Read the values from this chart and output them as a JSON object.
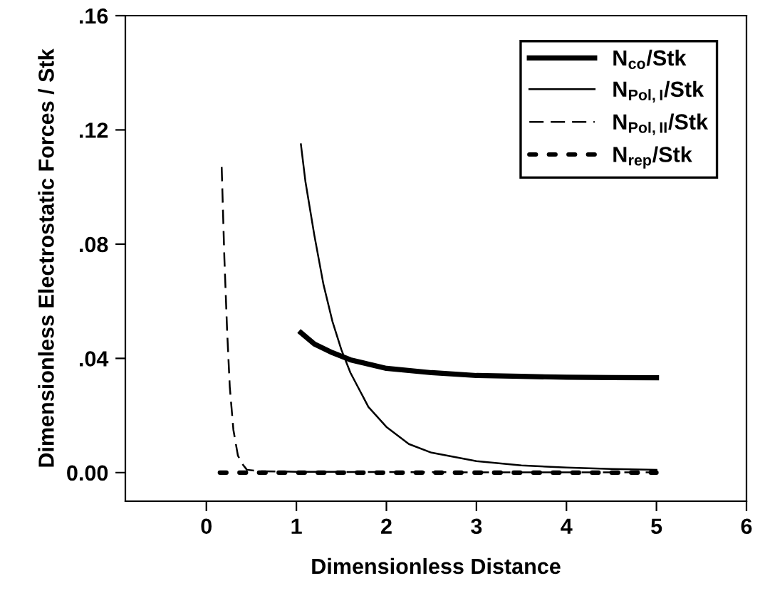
{
  "chart_data": {
    "type": "line",
    "xlabel": "Dimensionless Distance",
    "ylabel": "Dimensionless Electrostatic Forces / Stk",
    "xlim": [
      -0.9,
      6
    ],
    "xticks": [
      0,
      1,
      2,
      3,
      4,
      5,
      6
    ],
    "ylim": [
      -0.01,
      0.16
    ],
    "yticks": [
      {
        "value": 0,
        "label": "0.00"
      },
      {
        "value": 0.04,
        "label": ".04"
      },
      {
        "value": 0.08,
        "label": ".08"
      },
      {
        "value": 0.12,
        "label": ".12"
      },
      {
        "value": 0.16,
        "label": ".16"
      }
    ],
    "grid": false,
    "legend": "top right",
    "marker": "none",
    "series": [
      {
        "name": "N$_{co}$/Stk",
        "color": "#000000",
        "line_style": "solid",
        "x": [
          1.05,
          1.2,
          1.4,
          1.6,
          1.8,
          2,
          2.5,
          3,
          3.5,
          4,
          4.5,
          5
        ],
        "values": [
          0.049,
          0.045,
          0.042,
          0.0395,
          0.038,
          0.0365,
          0.035,
          0.034,
          0.0337,
          0.0334,
          0.0333,
          0.0332
        ]
      },
      {
        "name": "N$_{Pol,I}$/Stk",
        "color": "#000000",
        "line_style": "solid",
        "x": [
          1.05,
          1.1,
          1.2,
          1.3,
          1.4,
          1.5,
          1.6,
          1.8,
          2,
          2.25,
          2.5,
          3,
          3.5,
          4,
          4.5,
          5
        ],
        "values": [
          0.115,
          0.102,
          0.083,
          0.066,
          0.053,
          0.043,
          0.035,
          0.023,
          0.016,
          0.01,
          0.007,
          0.004,
          0.0025,
          0.0018,
          0.0013,
          0.001
        ]
      },
      {
        "name": "N$_{Pol,II}$/Stk",
        "color": "#000000",
        "line_style": "dashed",
        "x": [
          0.17,
          0.2,
          0.23,
          0.26,
          0.3,
          0.35,
          0.4,
          0.45,
          0.6,
          1,
          2,
          3,
          4,
          5
        ],
        "values": [
          0.107,
          0.075,
          0.05,
          0.03,
          0.015,
          0.006,
          0.003,
          0.001,
          0.0005,
          0.0003,
          0.0002,
          0.0001,
          0.0001,
          0.0001
        ]
      },
      {
        "name": "N$_{rep}$/Stk",
        "color": "#000000",
        "line_style": "dotted",
        "x": [
          0.15,
          1,
          2,
          3,
          4,
          5
        ],
        "values": [
          0,
          0,
          0,
          0,
          0,
          0
        ]
      }
    ]
  }
}
